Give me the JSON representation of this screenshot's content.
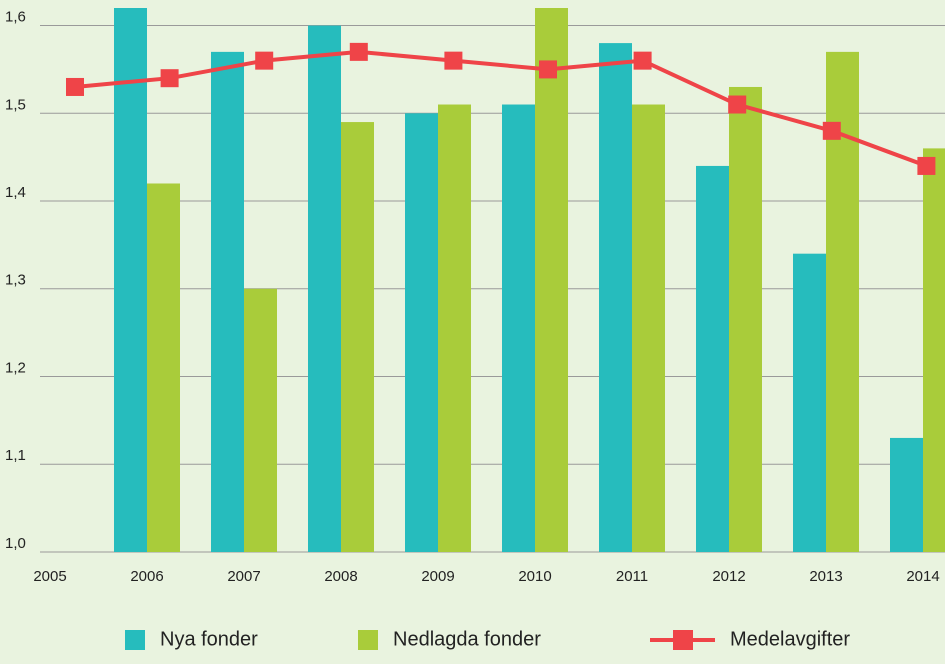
{
  "chart_data": {
    "type": "bar",
    "categories": [
      "2005",
      "2006",
      "2007",
      "2008",
      "2009",
      "2010",
      "2011",
      "2012",
      "2013",
      "2014"
    ],
    "series": [
      {
        "name": "Nya fonder",
        "color": "#26bcbd",
        "values": [
          null,
          1.62,
          1.57,
          1.6,
          1.5,
          1.51,
          1.58,
          1.44,
          1.34,
          1.13
        ]
      },
      {
        "name": "Nedlagda fonder",
        "color": "#a9cc3a",
        "values": [
          null,
          1.42,
          1.3,
          1.49,
          1.51,
          1.62,
          1.51,
          1.53,
          1.57,
          1.46
        ]
      },
      {
        "name": "Medelavgifter",
        "color": "#ef4448",
        "type": "line",
        "values": [
          1.53,
          1.54,
          1.56,
          1.57,
          1.56,
          1.55,
          1.56,
          1.51,
          1.48,
          1.44
        ]
      }
    ],
    "ylim": [
      1.0,
      1.62
    ],
    "yticks": [
      {
        "value": 1.0,
        "label": "1,0"
      },
      {
        "value": 1.1,
        "label": "1,1"
      },
      {
        "value": 1.2,
        "label": "1,2"
      },
      {
        "value": 1.3,
        "label": "1,3"
      },
      {
        "value": 1.4,
        "label": "1,4"
      },
      {
        "value": 1.5,
        "label": "1,5"
      },
      {
        "value": 1.6,
        "label": "1,6"
      }
    ],
    "grid": true,
    "legend": "bottom"
  }
}
